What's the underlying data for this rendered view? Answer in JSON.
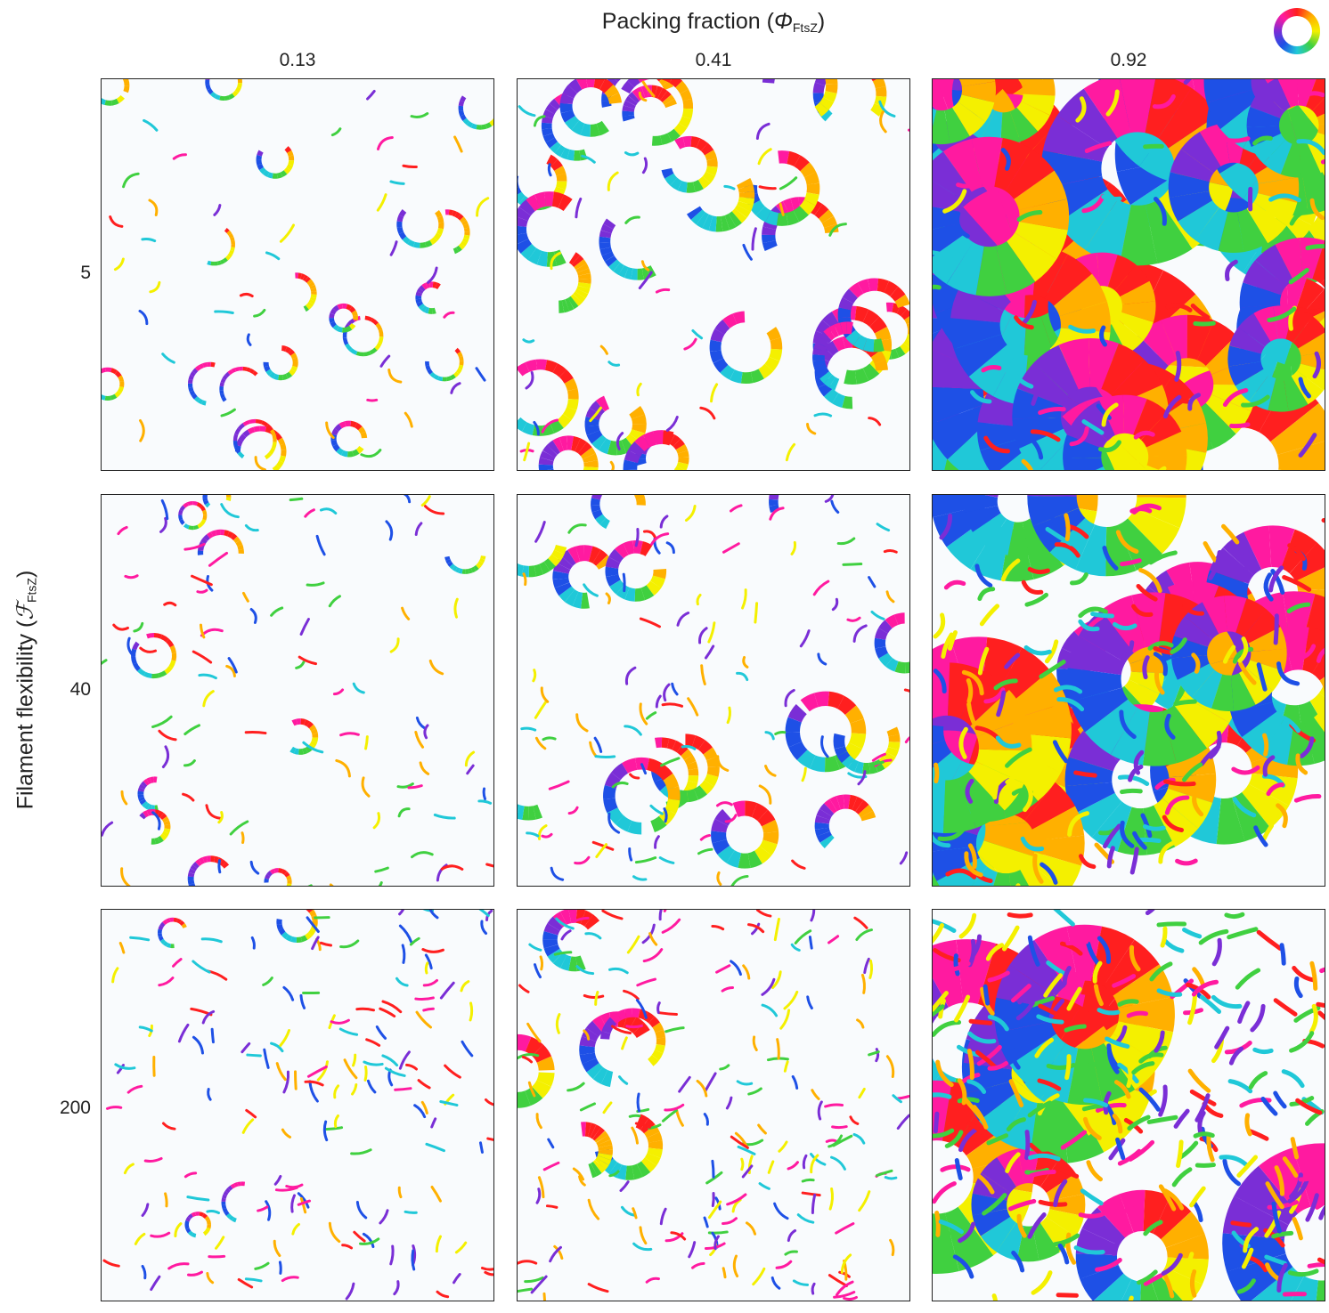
{
  "figure": {
    "column_axis": {
      "title_text": "Packing fraction (",
      "title_symbol": "Φ",
      "title_subscript": "FtsZ",
      "title_close": ")",
      "labels": [
        "0.13",
        "0.41",
        "0.92"
      ]
    },
    "row_axis": {
      "title_text": "Filament flexibility (",
      "title_symbol": "ℱ",
      "title_subscript": "FtsZ",
      "title_close": ")",
      "labels": [
        "5",
        "40",
        "200"
      ]
    },
    "orientation_colormap": {
      "type": "cyclic color wheel",
      "colors": [
        "#ff1f1f",
        "#ffb000",
        "#f4f000",
        "#40d040",
        "#20c8d8",
        "#1e50e6",
        "#7a2ed6",
        "#ff1aa0"
      ]
    },
    "panels": [
      {
        "row": "5",
        "column": "0.13"
      },
      {
        "row": "5",
        "column": "0.41"
      },
      {
        "row": "5",
        "column": "0.92"
      },
      {
        "row": "40",
        "column": "0.13"
      },
      {
        "row": "40",
        "column": "0.41"
      },
      {
        "row": "40",
        "column": "0.92"
      },
      {
        "row": "200",
        "column": "0.13"
      },
      {
        "row": "200",
        "column": "0.41"
      },
      {
        "row": "200",
        "column": "0.92"
      }
    ]
  }
}
